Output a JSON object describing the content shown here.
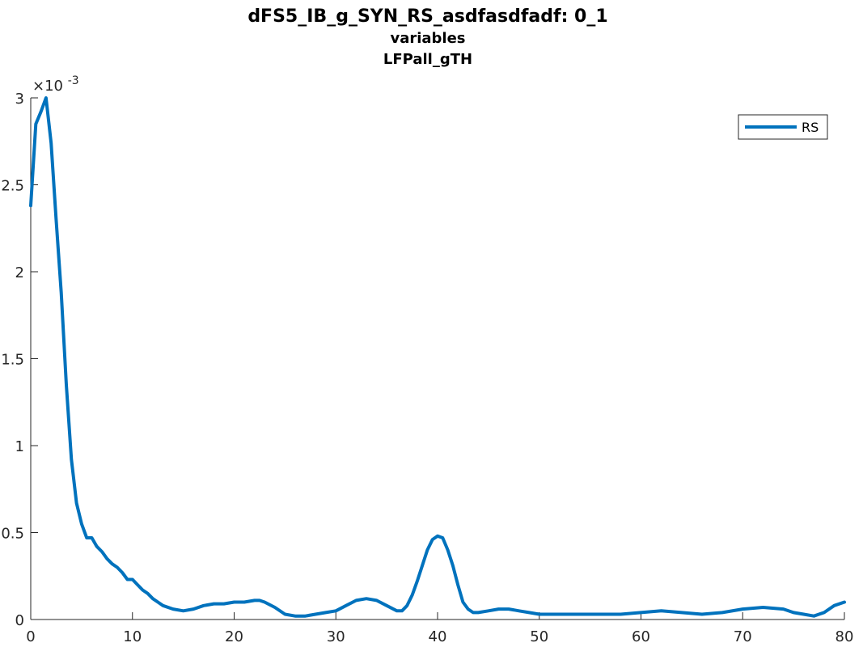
{
  "chart_data": {
    "type": "line",
    "title": "dFS5_IB_g_SYN_RS_asdfasdfadf: 0_1",
    "subtitle_lines": [
      "variables",
      "LFPall_gTH"
    ],
    "xlabel": "",
    "ylabel": "",
    "xlim": [
      0,
      80
    ],
    "ylim": [
      0,
      0.003
    ],
    "x_ticks": [
      0,
      10,
      20,
      30,
      40,
      50,
      60,
      70,
      80
    ],
    "y_ticks": [
      0,
      0.0005,
      0.001,
      0.0015,
      0.002,
      0.0025,
      0.003
    ],
    "y_tick_labels": [
      "0",
      "0.5",
      "1",
      "1.5",
      "2",
      "2.5",
      "3"
    ],
    "y_exponent_label": "×10",
    "y_exponent_value": "-3",
    "grid": false,
    "legend_position": "top-right",
    "line_color": "#0072BD",
    "series": [
      {
        "name": "RS",
        "x": [
          0,
          0.5,
          1,
          1.5,
          2,
          2.5,
          3,
          3.5,
          4,
          4.5,
          5,
          5.5,
          6,
          6.5,
          7,
          7.5,
          8,
          8.5,
          9,
          9.5,
          10,
          10.5,
          11,
          11.5,
          12,
          12.5,
          13,
          14,
          15,
          16,
          17,
          18,
          19,
          20,
          21,
          22,
          22.5,
          23,
          24,
          25,
          26,
          27,
          28,
          29,
          30,
          31,
          32,
          33,
          34,
          35,
          36,
          36.5,
          37,
          37.5,
          38,
          38.5,
          39,
          39.5,
          40,
          40.5,
          41,
          41.5,
          42,
          42.5,
          43,
          43.5,
          44,
          45,
          46,
          47,
          48,
          49,
          50,
          52,
          54,
          56,
          58,
          60,
          62,
          64,
          66,
          68,
          70,
          72,
          74,
          75,
          76,
          77,
          78,
          79,
          80
        ],
        "values": [
          0.00238,
          0.00285,
          0.00292,
          0.003,
          0.00274,
          0.0023,
          0.00188,
          0.00135,
          0.00092,
          0.00067,
          0.00055,
          0.00047,
          0.00047,
          0.00042,
          0.00039,
          0.00035,
          0.00032,
          0.0003,
          0.00027,
          0.00023,
          0.00023,
          0.0002,
          0.00017,
          0.00015,
          0.00012,
          0.0001,
          8e-05,
          6e-05,
          5e-05,
          6e-05,
          8e-05,
          9e-05,
          9e-05,
          0.0001,
          0.0001,
          0.00011,
          0.00011,
          0.0001,
          7e-05,
          3e-05,
          2e-05,
          2e-05,
          3e-05,
          4e-05,
          5e-05,
          8e-05,
          0.00011,
          0.00012,
          0.00011,
          8e-05,
          5e-05,
          5e-05,
          8e-05,
          0.00014,
          0.00022,
          0.00031,
          0.0004,
          0.00046,
          0.00048,
          0.00047,
          0.0004,
          0.00031,
          0.0002,
          0.0001,
          6e-05,
          4e-05,
          4e-05,
          5e-05,
          6e-05,
          6e-05,
          5e-05,
          4e-05,
          3e-05,
          3e-05,
          3e-05,
          3e-05,
          3e-05,
          4e-05,
          5e-05,
          4e-05,
          3e-05,
          4e-05,
          6e-05,
          7e-05,
          6e-05,
          4e-05,
          3e-05,
          2e-05,
          4e-05,
          8e-05,
          0.0001
        ]
      }
    ]
  }
}
